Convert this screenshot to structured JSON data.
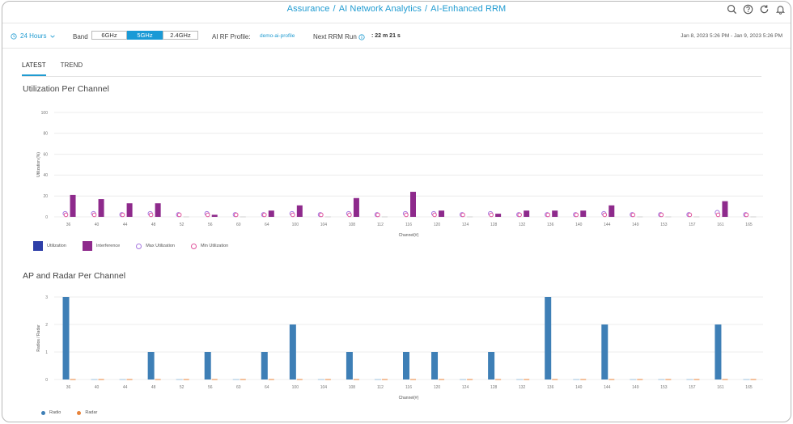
{
  "header": {
    "breadcrumbs": [
      "Assurance",
      "AI Network Analytics",
      "AI-Enhanced RRM"
    ],
    "icons": [
      "search-icon",
      "help-icon",
      "refresh-icon",
      "bell-icon"
    ]
  },
  "filters": {
    "time_range": "24 Hours",
    "band_label": "Band",
    "bands": [
      "6GHz",
      "5GHz",
      "2.4GHz"
    ],
    "selected_band": "5GHz",
    "profile_label": "AI RF Profile:",
    "profile_value": "demo-ai-profile",
    "rrm_label": "Next RRM Run",
    "rrm_value": ": 22 m 21 s",
    "date_range": "Jan 8, 2023 5:26 PM - Jan 9, 2023 5:26 PM"
  },
  "tabs": [
    "LATEST",
    "TREND"
  ],
  "active_tab": "LATEST",
  "colors": {
    "accent": "#1f9bd1",
    "utilization": "#2e3fa8",
    "interference": "#8e2a8c",
    "max_utilization": "#a678e0",
    "min_utilization": "#e0559d",
    "radio": "#3e7fb6",
    "radar": "#e8833a"
  },
  "chart_data": [
    {
      "type": "bar",
      "title": "Utilization Per Channel",
      "xlabel": "Channel(#)",
      "ylabel": "Utilization (%)",
      "ylim": [
        0,
        100
      ],
      "yticks": [
        0,
        20,
        40,
        60,
        80,
        100
      ],
      "categories": [
        "36",
        "40",
        "44",
        "48",
        "52",
        "56",
        "60",
        "64",
        "100",
        "104",
        "108",
        "112",
        "116",
        "120",
        "124",
        "128",
        "132",
        "136",
        "140",
        "144",
        "149",
        "153",
        "157",
        "161",
        "165"
      ],
      "series": [
        {
          "name": "Utilization",
          "kind": "bar",
          "values": [
            0,
            0,
            0,
            0,
            0,
            0,
            0,
            0,
            0,
            0,
            0,
            0,
            0,
            0,
            0,
            0,
            0,
            0,
            0,
            0,
            0,
            0,
            0,
            0,
            0
          ]
        },
        {
          "name": "Interference",
          "kind": "bar",
          "values": [
            21,
            17,
            13,
            13,
            0,
            2,
            0,
            6,
            11,
            0,
            18,
            0,
            24,
            6,
            0,
            3,
            6,
            6,
            6,
            11,
            0,
            0,
            0,
            15,
            0
          ]
        },
        {
          "name": "Max Utilization",
          "kind": "marker",
          "values": [
            2,
            2,
            1,
            2,
            1,
            2,
            1,
            1,
            2,
            1,
            2,
            1,
            2,
            2,
            1,
            2,
            1,
            1,
            1,
            2,
            1,
            1,
            1,
            3,
            1
          ]
        },
        {
          "name": "Min Utilization",
          "kind": "marker",
          "values": [
            1,
            1,
            1,
            1,
            1,
            1,
            1,
            1,
            1,
            1,
            1,
            1,
            1,
            1,
            1,
            1,
            1,
            1,
            1,
            1,
            1,
            1,
            1,
            1,
            1
          ]
        }
      ]
    },
    {
      "type": "bar",
      "title": "AP and Radar Per Channel",
      "xlabel": "Channel(#)",
      "ylabel": "Radios / Radar",
      "ylim": [
        0,
        3
      ],
      "yticks": [
        0,
        1,
        2,
        3
      ],
      "categories": [
        "36",
        "40",
        "44",
        "48",
        "52",
        "56",
        "60",
        "64",
        "100",
        "104",
        "108",
        "112",
        "116",
        "120",
        "124",
        "128",
        "132",
        "136",
        "140",
        "144",
        "149",
        "153",
        "157",
        "161",
        "165"
      ],
      "series": [
        {
          "name": "Radio",
          "values": [
            3,
            0,
            0,
            1,
            0,
            1,
            0,
            1,
            2,
            0,
            1,
            0,
            1,
            1,
            0,
            1,
            0,
            3,
            0,
            2,
            0,
            0,
            0,
            2,
            0
          ]
        },
        {
          "name": "Radar",
          "values": [
            0,
            0,
            0,
            0,
            0,
            0,
            0,
            0,
            0,
            0,
            0,
            0,
            0,
            0,
            0,
            0,
            0,
            0,
            0,
            0,
            0,
            0,
            0,
            0,
            0
          ]
        }
      ]
    }
  ]
}
